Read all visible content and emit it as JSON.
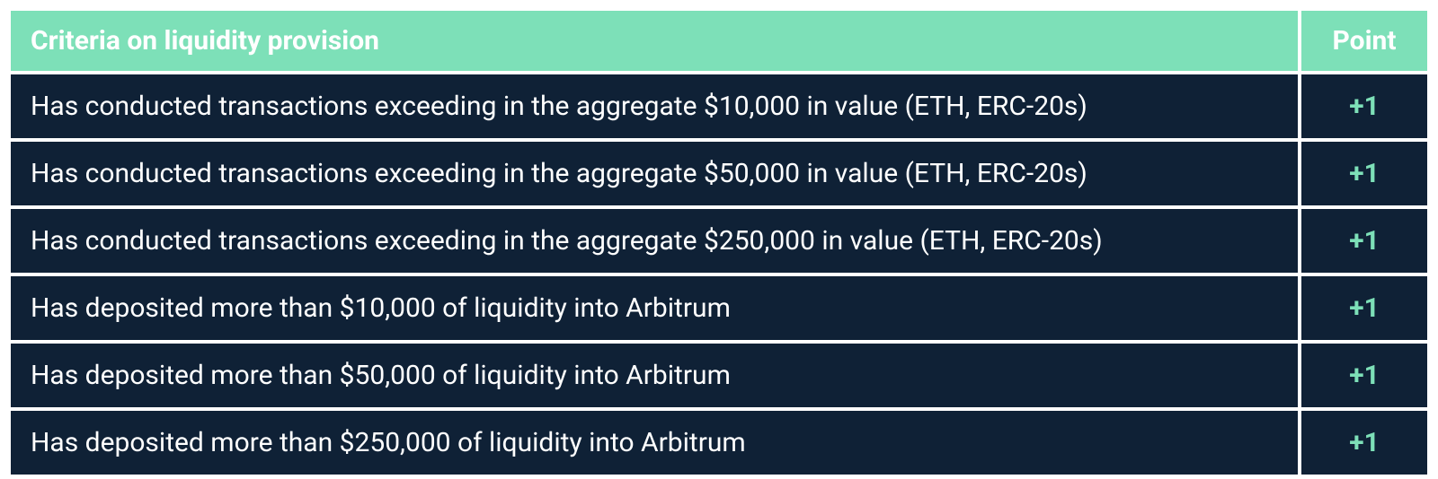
{
  "table": {
    "background_color": "#ffffff",
    "cell_spacing": 4,
    "header": {
      "criteria_label": "Criteria on liquidity provision",
      "point_label": "Point",
      "bg_color": "#7de0b8",
      "text_color": "#ffffff",
      "font_size": 30,
      "font_weight": 700
    },
    "body": {
      "bg_color": "#0f2136",
      "text_color": "#ffffff",
      "point_color": "#7de0b8",
      "font_size": 30
    },
    "columns": [
      "Criteria on liquidity provision",
      "Point"
    ],
    "column_widths": [
      "auto",
      "140px"
    ],
    "rows": [
      {
        "criteria": "Has conducted transactions exceeding in the aggregate $10,000 in value (ETH, ERC-20s)",
        "point": "+1"
      },
      {
        "criteria": "Has conducted transactions exceeding in the aggregate $50,000 in value (ETH,  ERC-20s)",
        "point": "+1"
      },
      {
        "criteria": "Has conducted transactions exceeding in the aggregate $250,000 in value (ETH, ERC-20s)",
        "point": "+1"
      },
      {
        "criteria": "Has deposited more than $10,000 of liquidity into Arbitrum",
        "point": "+1"
      },
      {
        "criteria": "Has deposited more than $50,000 of liquidity into Arbitrum",
        "point": "+1"
      },
      {
        "criteria": "Has deposited more than $250,000 of liquidity into Arbitrum",
        "point": "+1"
      }
    ]
  }
}
